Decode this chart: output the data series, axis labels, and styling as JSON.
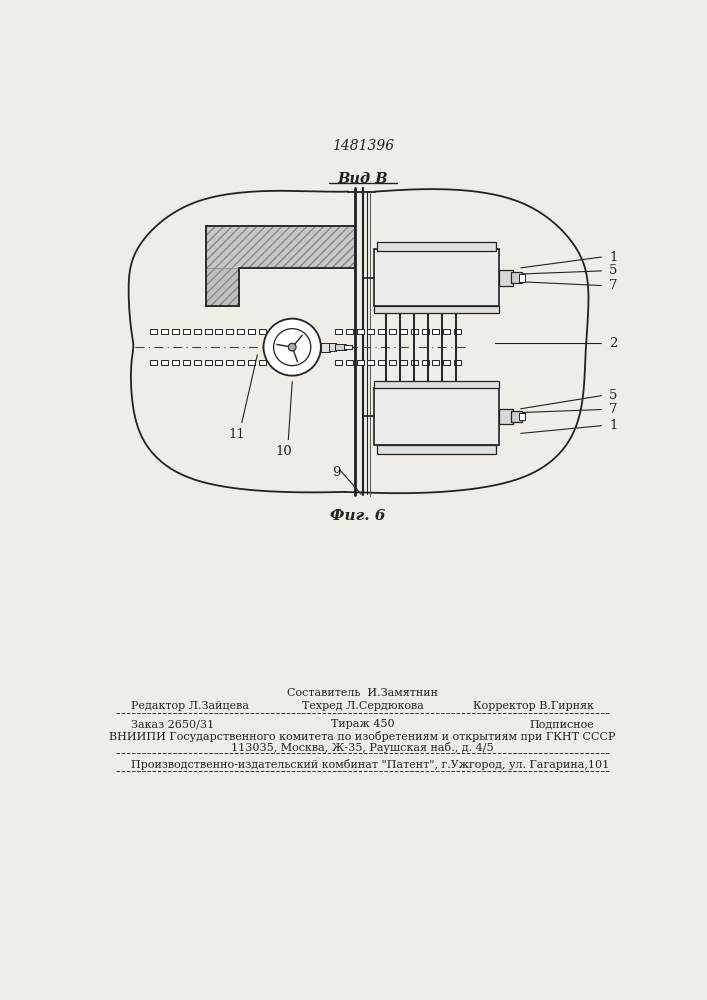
{
  "patent_number": "1481396",
  "view_label": "Вид В",
  "fig_label": "Фиг. 6",
  "bg_color": "#f0ede8",
  "line_color": "#222222",
  "labels_right": [
    "1",
    "5",
    "7",
    "2",
    "5",
    "7",
    "1"
  ],
  "labels_left": [
    "11",
    "10",
    "9"
  ],
  "bottom_text": {
    "line1_center": "Составитель  И.Замятнин",
    "col1_label": "Редактор Л.Зайцева",
    "col2_label": "Техред Л.Сердюкова",
    "col3_label": "Корректор В.Гирняк",
    "order": "Заказ 2650/31",
    "tirazh": "Тираж 450",
    "podpisnoe": "Подписное",
    "vnipi": "ВНИИПИ Государственного комитета по изобретениям и открытиям при ГКНТ СССР",
    "address": "113035, Москва, Ж-35, Раушская наб., д. 4/5",
    "publisher": "Производственно-издательский комбинат \"Патент\", г.Ужгород, ул. Гагарина,101"
  }
}
